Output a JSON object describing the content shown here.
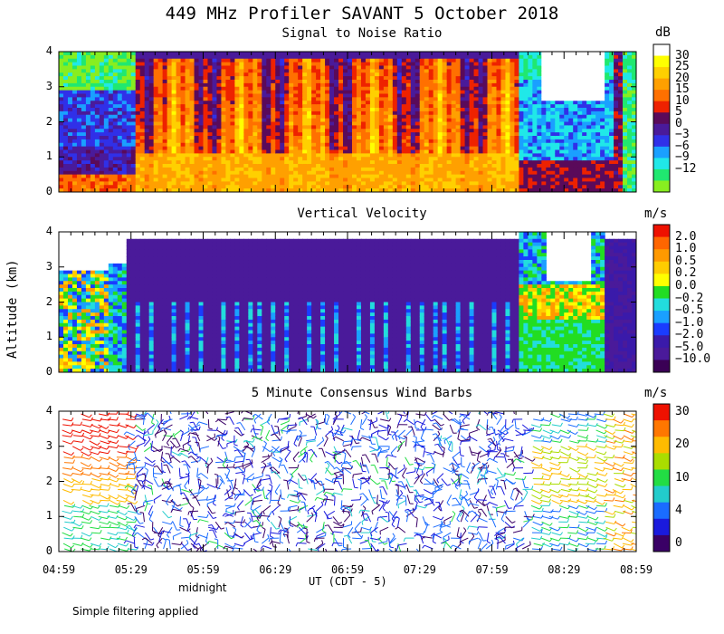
{
  "main_title": "449 MHz Profiler SAVANT  5 October 2018",
  "y_axis_title": "Altitude (km)",
  "x_axis_title": "UT (CDT - 5)",
  "midnight_label": "midnight",
  "footnote": "Simple filtering applied",
  "chart_data": [
    {
      "type": "heatmap",
      "title": "Signal to Noise Ratio",
      "xlabel": "UT (CDT - 5)",
      "ylabel": "Altitude (km)",
      "x_ticks": [
        "04:59",
        "05:29",
        "05:59",
        "06:29",
        "06:59",
        "07:29",
        "07:59",
        "08:29",
        "08:59"
      ],
      "y_ticks": [
        "0",
        "1",
        "2",
        "3",
        "4"
      ],
      "ylim": [
        0,
        4
      ],
      "colorbar_unit": "dB",
      "colorbar_labels": [
        "30",
        "25",
        "20",
        "15",
        "10",
        "5",
        "0",
        "−3",
        "−6",
        "−9",
        "−12"
      ],
      "colorbar_colors": [
        "#ffffff",
        "#ffff00",
        "#ffd000",
        "#ffa000",
        "#ff7000",
        "#ee2200",
        "#5a0a5a",
        "#4a1a9a",
        "#3030e8",
        "#1aa0ff",
        "#20e8e8",
        "#20e870",
        "#88ee20"
      ]
    },
    {
      "type": "heatmap",
      "title": "Vertical Velocity",
      "xlabel": "UT (CDT - 5)",
      "ylabel": "Altitude (km)",
      "y_ticks": [
        "0",
        "1",
        "2",
        "3",
        "4"
      ],
      "ylim": [
        0,
        4
      ],
      "colorbar_unit": "m/s",
      "colorbar_labels": [
        "2.0",
        "1.0",
        "0.5",
        "0.2",
        "0.0",
        "−0.2",
        "−0.5",
        "−1.0",
        "−2.0",
        "−5.0",
        "−10.0"
      ],
      "colorbar_colors": [
        "#ee1100",
        "#ff6600",
        "#ff9900",
        "#ffcc00",
        "#ffff00",
        "#22dd22",
        "#22dddd",
        "#1aa0ff",
        "#1a3cff",
        "#3a1aaa",
        "#4a1a9a",
        "#3a0055"
      ]
    },
    {
      "type": "scatter",
      "title": "5 Minute Consensus Wind Barbs",
      "xlabel": "UT (CDT - 5)",
      "ylabel": "Altitude (km)",
      "y_ticks": [
        "0",
        "1",
        "2",
        "3",
        "4"
      ],
      "ylim": [
        0,
        4
      ],
      "colorbar_unit": "m/s",
      "colorbar_labels": [
        "30",
        "20",
        "10",
        "4",
        "0"
      ],
      "colorbar_colors": [
        "#ee1100",
        "#ff7700",
        "#ffbb00",
        "#aadd00",
        "#22dd44",
        "#22cccc",
        "#1a6cff",
        "#1a1add",
        "#3a0066"
      ]
    }
  ]
}
